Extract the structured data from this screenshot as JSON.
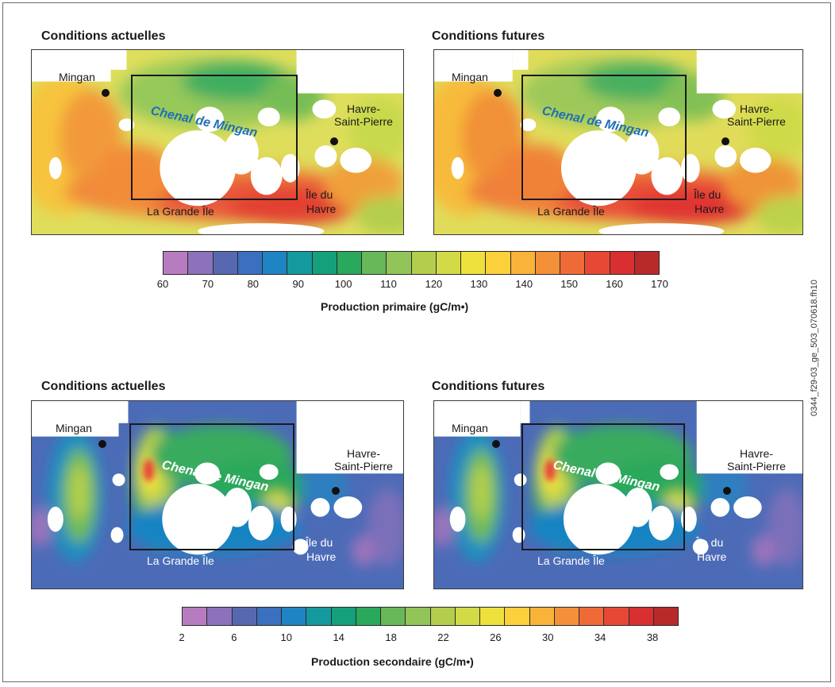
{
  "primary": {
    "left": {
      "title": "Conditions actuelles",
      "labels": {
        "mingan": "Mingan",
        "havre1": "Havre-",
        "havre2": "Saint-Pierre",
        "chenal": "Chenal de Mingan",
        "grande": "La  Grande Île",
        "ile1": "Île du",
        "ile2": "Havre"
      }
    },
    "right": {
      "title": "Conditions futures",
      "labels": {
        "mingan": "Mingan",
        "havre1": "Havre-",
        "havre2": "Saint-Pierre",
        "chenal": "Chenal de Mingan",
        "grande": "La  Grande Île",
        "ile1": "Île du",
        "ile2": "Havre"
      }
    },
    "colorbar": {
      "title": "Production primaire (gC/m•)",
      "ticks": [
        "60",
        "70",
        "80",
        "90",
        "100",
        "110",
        "120",
        "130",
        "140",
        "150",
        "160",
        "170"
      ],
      "range": [
        60,
        170
      ],
      "colors": [
        "#b77cc0",
        "#8b72bb",
        "#5868b0",
        "#3b6fbf",
        "#1f84c4",
        "#14999f",
        "#13a07a",
        "#2aa85b",
        "#67b858",
        "#92c45a",
        "#b3cd4d",
        "#d3da47",
        "#eee13e",
        "#fbd03a",
        "#f9b23a",
        "#f48f3a",
        "#ee6b37",
        "#e74835",
        "#d83030",
        "#b82a2a"
      ]
    }
  },
  "secondary": {
    "left": {
      "title": "Conditions actuelles",
      "labels": {
        "mingan": "Mingan",
        "havre1": "Havre-",
        "havre2": "Saint-Pierre",
        "chenal": "Chenal de Mingan",
        "grande": "La Grande Île",
        "ile1": "Île du",
        "ile2": "Havre"
      }
    },
    "right": {
      "title": "Conditions futures",
      "labels": {
        "mingan": "Mingan",
        "havre1": "Havre-",
        "havre2": "Saint-Pierre",
        "chenal": "Chenal de Mingan",
        "grande": "La Grande Île",
        "ile1": "Île du",
        "ile2": "Havre"
      }
    },
    "colorbar": {
      "title": "Production secondaire (gC/m•)",
      "ticks": [
        "2",
        "6",
        "10",
        "14",
        "18",
        "22",
        "26",
        "30",
        "34",
        "38"
      ],
      "range": [
        2,
        40
      ],
      "colors": [
        "#b77cc0",
        "#8b72bb",
        "#5868b0",
        "#3b6fbf",
        "#1f84c4",
        "#14999f",
        "#13a07a",
        "#2aa85b",
        "#67b858",
        "#92c45a",
        "#b3cd4d",
        "#d3da47",
        "#eee13e",
        "#fbd03a",
        "#f9b23a",
        "#f48f3a",
        "#ee6b37",
        "#e74835",
        "#d83030",
        "#b82a2a"
      ]
    }
  },
  "figure_id": "0344_f29-03_ge_503_070618.fh10"
}
